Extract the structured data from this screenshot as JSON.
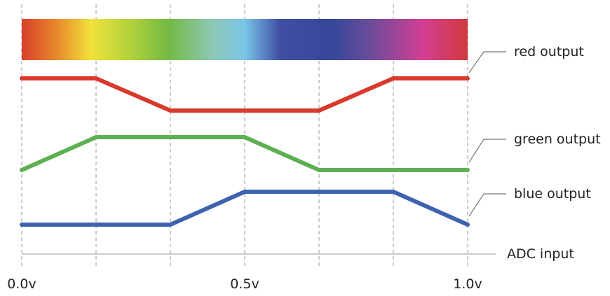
{
  "labels": {
    "red": "red output",
    "green": "green output",
    "blue": "blue output",
    "axis": "ADC input"
  },
  "ticks": [
    {
      "value": 0.0,
      "label": "0.0v"
    },
    {
      "value": 0.5,
      "label": "0.5v"
    },
    {
      "value": 1.0,
      "label": "1.0v"
    }
  ],
  "segment_boundaries": [
    0,
    0.1667,
    0.3333,
    0.5,
    0.6667,
    0.8333,
    1.0
  ],
  "outputs": [
    {
      "key": "red",
      "color": "#d9382c",
      "points": [
        [
          0,
          1
        ],
        [
          0.1667,
          1
        ],
        [
          0.3333,
          0
        ],
        [
          0.5,
          0
        ],
        [
          0.6667,
          0
        ],
        [
          0.8333,
          1
        ],
        [
          1,
          1
        ]
      ]
    },
    {
      "key": "green",
      "color": "#5db052",
      "points": [
        [
          0,
          0
        ],
        [
          0.1667,
          1
        ],
        [
          0.3333,
          1
        ],
        [
          0.5,
          1
        ],
        [
          0.6667,
          0
        ],
        [
          0.8333,
          0
        ],
        [
          1,
          0
        ]
      ]
    },
    {
      "key": "blue",
      "color": "#3d63b0",
      "points": [
        [
          0,
          0
        ],
        [
          0.1667,
          0
        ],
        [
          0.3333,
          0
        ],
        [
          0.5,
          1
        ],
        [
          0.6667,
          1
        ],
        [
          0.8333,
          1
        ],
        [
          1,
          0
        ]
      ]
    }
  ],
  "spectrum_colors": [
    {
      "offset": 0.0,
      "color": "#d7402a"
    },
    {
      "offset": 0.08,
      "color": "#e88a2c"
    },
    {
      "offset": 0.155,
      "color": "#f1e23a"
    },
    {
      "offset": 0.24,
      "color": "#b4d23c"
    },
    {
      "offset": 0.33,
      "color": "#74b944"
    },
    {
      "offset": 0.43,
      "color": "#8cc8b8"
    },
    {
      "offset": 0.5,
      "color": "#7ac5e8"
    },
    {
      "offset": 0.58,
      "color": "#3f4ea4"
    },
    {
      "offset": 0.7,
      "color": "#36479a"
    },
    {
      "offset": 0.78,
      "color": "#6b4c9a"
    },
    {
      "offset": 0.9,
      "color": "#d23e93"
    },
    {
      "offset": 1.0,
      "color": "#d0393c"
    }
  ]
}
